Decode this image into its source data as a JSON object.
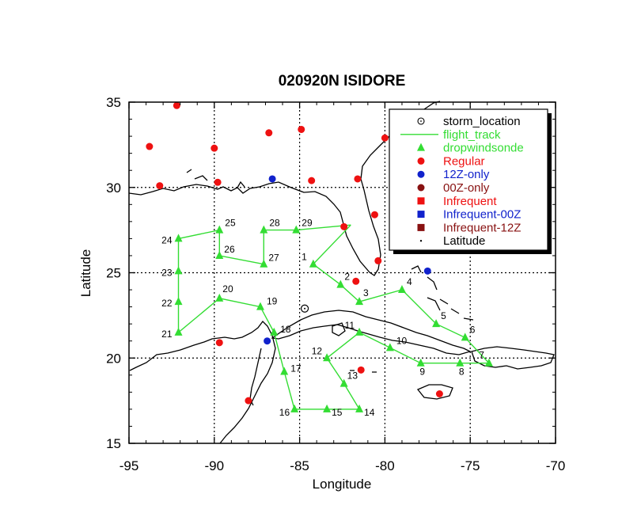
{
  "chart_data": {
    "type": "map",
    "title": "020920N ISIDORE",
    "xlabel": "Longitude",
    "ylabel": "Latitude",
    "xlim": [
      -95,
      -70
    ],
    "ylim": [
      15,
      35
    ],
    "xticks": [
      -95,
      -90,
      -85,
      -80,
      -75,
      -70
    ],
    "yticks": [
      15,
      20,
      25,
      30,
      35
    ],
    "grid": true,
    "grid_style": "dotted",
    "legend_position": "top-right",
    "legend": [
      {
        "key": "storm_location",
        "label": "storm_location",
        "color": "#000000",
        "marker": "circle-dot"
      },
      {
        "key": "flight_track",
        "label": "flight_track",
        "color": "#33dd33",
        "marker": "line"
      },
      {
        "key": "dropwindsonde",
        "label": "dropwindsonde",
        "color": "#33dd33",
        "marker": "triangle"
      },
      {
        "key": "regular",
        "label": "Regular",
        "color": "#ee1111",
        "marker": "dot"
      },
      {
        "key": "12z_only",
        "label": "12Z-only",
        "color": "#1122cc",
        "marker": "dot"
      },
      {
        "key": "00z_only",
        "label": "00Z-only",
        "color": "#881111",
        "marker": "dot"
      },
      {
        "key": "infrequent",
        "label": "Infrequent",
        "color": "#ee1111",
        "marker": "square"
      },
      {
        "key": "infrequent_00z",
        "label": "Infrequent-00Z",
        "color": "#1122cc",
        "marker": "square"
      },
      {
        "key": "infrequent_12z",
        "label": "Infrequent-12Z",
        "color": "#881111",
        "marker": "square"
      },
      {
        "key": "latitude",
        "label": "Latitude",
        "color": "#000000",
        "marker": "point"
      }
    ],
    "storm_location": {
      "lon": -84.7,
      "lat": 22.9
    },
    "flight_track": [
      {
        "label": "",
        "lon": -82.0,
        "lat": 27.8
      },
      {
        "label": "1",
        "lon": -84.2,
        "lat": 25.5
      },
      {
        "label": "2",
        "lon": -82.6,
        "lat": 24.3
      },
      {
        "label": "3",
        "lon": -81.5,
        "lat": 23.3
      },
      {
        "label": "4",
        "lon": -79.0,
        "lat": 24.0
      },
      {
        "label": "5",
        "lon": -77.0,
        "lat": 22.0
      },
      {
        "label": "6",
        "lon": -75.3,
        "lat": 21.2
      },
      {
        "label": "7",
        "lon": -73.9,
        "lat": 19.7
      },
      {
        "label": "8",
        "lon": -75.6,
        "lat": 19.7
      },
      {
        "label": "9",
        "lon": -77.9,
        "lat": 19.7
      },
      {
        "label": "10",
        "lon": -79.7,
        "lat": 20.6
      },
      {
        "label": "11",
        "lon": -81.5,
        "lat": 21.5
      },
      {
        "label": "12",
        "lon": -83.4,
        "lat": 20.0
      },
      {
        "label": "13",
        "lon": -82.4,
        "lat": 18.5
      },
      {
        "label": "14",
        "lon": -81.5,
        "lat": 17.0
      },
      {
        "label": "15",
        "lon": -83.4,
        "lat": 17.0
      },
      {
        "label": "16",
        "lon": -85.3,
        "lat": 17.0
      },
      {
        "label": "17",
        "lon": -85.9,
        "lat": 19.2
      },
      {
        "label": "18",
        "lon": -86.5,
        "lat": 21.5
      },
      {
        "label": "19",
        "lon": -87.3,
        "lat": 23.0
      },
      {
        "label": "20",
        "lon": -89.7,
        "lat": 23.5
      },
      {
        "label": "21",
        "lon": -92.1,
        "lat": 21.5
      },
      {
        "label": "22",
        "lon": -92.1,
        "lat": 23.3
      },
      {
        "label": "23",
        "lon": -92.1,
        "lat": 25.1
      },
      {
        "label": "24",
        "lon": -92.1,
        "lat": 27.0
      },
      {
        "label": "25",
        "lon": -89.7,
        "lat": 27.5
      },
      {
        "label": "26",
        "lon": -89.7,
        "lat": 26.0
      },
      {
        "label": "27",
        "lon": -87.1,
        "lat": 25.5
      },
      {
        "label": "28",
        "lon": -87.1,
        "lat": 27.5
      },
      {
        "label": "29",
        "lon": -85.2,
        "lat": 27.5
      },
      {
        "label": "",
        "lon": -82.0,
        "lat": 27.8
      }
    ],
    "stations_regular": [
      {
        "lon": -92.2,
        "lat": 34.8
      },
      {
        "lon": -93.8,
        "lat": 32.4
      },
      {
        "lon": -93.2,
        "lat": 30.1
      },
      {
        "lon": -90.0,
        "lat": 32.3
      },
      {
        "lon": -89.8,
        "lat": 30.3
      },
      {
        "lon": -86.8,
        "lat": 33.2
      },
      {
        "lon": -84.9,
        "lat": 33.4
      },
      {
        "lon": -84.3,
        "lat": 30.4
      },
      {
        "lon": -81.6,
        "lat": 30.5
      },
      {
        "lon": -80.0,
        "lat": 32.9
      },
      {
        "lon": -80.6,
        "lat": 28.4
      },
      {
        "lon": -82.4,
        "lat": 27.7
      },
      {
        "lon": -80.4,
        "lat": 25.7
      },
      {
        "lon": -81.7,
        "lat": 24.5
      },
      {
        "lon": -89.7,
        "lat": 20.9
      },
      {
        "lon": -88.0,
        "lat": 17.5
      },
      {
        "lon": -81.4,
        "lat": 19.3
      },
      {
        "lon": -76.8,
        "lat": 17.9
      }
    ],
    "stations_12z_only": [
      {
        "lon": -86.6,
        "lat": 30.5
      },
      {
        "lon": -77.5,
        "lat": 25.1
      },
      {
        "lon": -86.9,
        "lat": 21.0
      }
    ],
    "colors": {
      "track": "#33dd33",
      "regular": "#ee1111",
      "twelve_z": "#1122cc",
      "zero_z": "#881111",
      "coast": "#000000",
      "grid": "#000000"
    }
  }
}
